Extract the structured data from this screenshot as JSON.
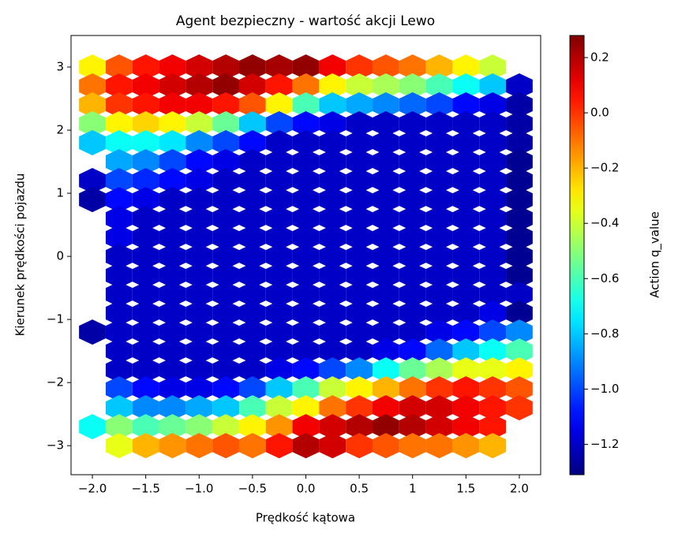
{
  "chart_data": {
    "type": "hexbin",
    "title": "Agent bezpieczny - wartość akcji Lewo",
    "x_label": "Prędkość kątowa",
    "y_label": "Kierunek prędkości pojazdu",
    "colorbar_label": "Action q_value",
    "colormap": "jet",
    "x": [
      -2.0,
      -1.75,
      -1.5,
      -1.25,
      -1.0,
      -0.75,
      -0.5,
      -0.25,
      0.0,
      0.25,
      0.5,
      0.75,
      1.0,
      1.25,
      1.5,
      1.75,
      2.0
    ],
    "y": [
      3.0,
      2.7,
      2.4,
      2.1,
      1.8,
      1.5,
      1.2,
      0.9,
      0.6,
      0.3,
      0.0,
      -0.3,
      -0.6,
      -0.9,
      -1.2,
      -1.5,
      -1.8,
      -2.1,
      -2.4,
      -2.7,
      -3.0
    ],
    "values": [
      [
        -0.3,
        -0.05,
        0.05,
        0.1,
        0.15,
        0.2,
        0.25,
        0.22,
        0.25,
        0.1,
        0.0,
        -0.05,
        -0.1,
        -0.2,
        -0.3,
        -0.4,
        null
      ],
      [
        -0.1,
        0.05,
        0.1,
        0.15,
        0.2,
        0.25,
        0.15,
        0.05,
        -0.1,
        -0.3,
        -0.4,
        -0.45,
        -0.5,
        -0.6,
        -0.7,
        -0.8,
        -1.2
      ],
      [
        -0.2,
        0.0,
        0.05,
        0.1,
        0.1,
        0.05,
        -0.05,
        -0.3,
        -0.6,
        -0.8,
        -0.85,
        -0.9,
        -0.95,
        -1.0,
        -1.1,
        -1.15,
        -1.25
      ],
      [
        -0.5,
        -0.3,
        -0.25,
        -0.3,
        -0.4,
        -0.55,
        -0.8,
        -1.0,
        -1.1,
        -1.15,
        -1.2,
        -1.2,
        -1.2,
        -1.2,
        -1.2,
        -1.2,
        -1.25
      ],
      [
        -0.8,
        -0.7,
        -0.7,
        -0.75,
        -0.9,
        -1.0,
        -1.1,
        -1.2,
        -1.2,
        -1.2,
        -1.2,
        -1.2,
        -1.2,
        -1.2,
        -1.2,
        -1.2,
        -1.25
      ],
      [
        null,
        -0.85,
        -0.9,
        -1.0,
        -1.1,
        -1.15,
        -1.2,
        -1.2,
        -1.2,
        -1.2,
        -1.2,
        -1.2,
        -1.2,
        -1.2,
        -1.2,
        -1.2,
        -1.28
      ],
      [
        -1.2,
        -1.0,
        -1.05,
        -1.1,
        -1.15,
        -1.2,
        -1.2,
        -1.2,
        -1.2,
        -1.2,
        -1.2,
        -1.2,
        -1.2,
        -1.2,
        -1.2,
        -1.2,
        -1.28
      ],
      [
        -1.25,
        -1.1,
        -1.15,
        -1.2,
        -1.2,
        -1.2,
        -1.2,
        -1.2,
        -1.2,
        -1.2,
        -1.2,
        -1.2,
        -1.2,
        -1.2,
        -1.2,
        -1.2,
        -1.28
      ],
      [
        null,
        -1.15,
        -1.2,
        -1.2,
        -1.2,
        -1.2,
        -1.2,
        -1.2,
        -1.2,
        -1.2,
        -1.2,
        -1.2,
        -1.2,
        -1.2,
        -1.2,
        -1.2,
        -1.28
      ],
      [
        null,
        -1.15,
        -1.2,
        -1.2,
        -1.2,
        -1.2,
        -1.2,
        -1.2,
        -1.2,
        -1.2,
        -1.2,
        -1.2,
        -1.2,
        -1.2,
        -1.2,
        -1.2,
        -1.28
      ],
      [
        null,
        -1.2,
        -1.2,
        -1.2,
        -1.2,
        -1.2,
        -1.2,
        -1.2,
        -1.2,
        -1.2,
        -1.2,
        -1.2,
        -1.2,
        -1.2,
        -1.2,
        -1.2,
        -1.28
      ],
      [
        null,
        -1.2,
        -1.2,
        -1.2,
        -1.2,
        -1.2,
        -1.2,
        -1.2,
        -1.2,
        -1.2,
        -1.2,
        -1.2,
        -1.2,
        -1.2,
        -1.2,
        -1.2,
        -1.28
      ],
      [
        null,
        -1.2,
        -1.2,
        -1.2,
        -1.2,
        -1.2,
        -1.2,
        -1.2,
        -1.2,
        -1.2,
        -1.2,
        -1.2,
        -1.2,
        -1.2,
        -1.2,
        -1.2,
        -1.2
      ],
      [
        null,
        -1.2,
        -1.2,
        -1.2,
        -1.2,
        -1.2,
        -1.2,
        -1.2,
        -1.2,
        -1.2,
        -1.2,
        -1.2,
        -1.2,
        -1.2,
        -1.2,
        -1.15,
        -1.28
      ],
      [
        -1.25,
        -1.2,
        -1.2,
        -1.2,
        -1.2,
        -1.2,
        -1.2,
        -1.2,
        -1.2,
        -1.2,
        -1.2,
        -1.2,
        -1.2,
        -1.15,
        -1.1,
        -1.0,
        -0.9
      ],
      [
        null,
        -1.2,
        -1.2,
        -1.2,
        -1.2,
        -1.2,
        -1.2,
        -1.2,
        -1.2,
        -1.2,
        -1.2,
        -1.15,
        -1.1,
        -0.95,
        -0.8,
        -0.7,
        -0.6
      ],
      [
        null,
        -1.2,
        -1.2,
        -1.2,
        -1.2,
        -1.2,
        -1.2,
        -1.15,
        -1.1,
        -1.0,
        -0.9,
        -0.7,
        -0.55,
        -0.45,
        -0.35,
        -0.35,
        -0.3
      ],
      [
        null,
        -1.0,
        -1.1,
        -1.15,
        -1.15,
        -1.1,
        -1.0,
        -0.8,
        -0.6,
        -0.4,
        -0.3,
        -0.2,
        -0.1,
        0.0,
        0.05,
        0.0,
        -0.05
      ],
      [
        null,
        -0.8,
        -0.9,
        -0.9,
        -0.85,
        -0.8,
        -0.6,
        -0.4,
        -0.3,
        -0.1,
        0.0,
        0.1,
        0.15,
        0.15,
        0.1,
        0.05,
        0.0
      ],
      [
        -0.7,
        -0.5,
        -0.6,
        -0.55,
        -0.5,
        -0.4,
        -0.3,
        -0.15,
        0.1,
        0.15,
        0.2,
        0.25,
        0.2,
        0.15,
        0.1,
        0.05,
        null
      ],
      [
        null,
        -0.35,
        -0.2,
        -0.15,
        -0.1,
        -0.05,
        -0.1,
        0.05,
        0.2,
        0.15,
        0.0,
        -0.05,
        -0.1,
        -0.1,
        -0.15,
        -0.2,
        null
      ]
    ],
    "xlim": [
      -2.2,
      2.2
    ],
    "ylim": [
      -3.46,
      3.5
    ],
    "clim": [
      -1.31,
      0.28
    ],
    "xticks": [
      {
        "value": -2.0,
        "label": "−2.0"
      },
      {
        "value": -1.5,
        "label": "−1.5"
      },
      {
        "value": -1.0,
        "label": "−1.0"
      },
      {
        "value": -0.5,
        "label": "−0.5"
      },
      {
        "value": 0.0,
        "label": "0.0"
      },
      0.5,
      1.0,
      1.5,
      {
        "value": 2.0,
        "label": "2.0"
      }
    ],
    "yticks": [
      {
        "value": -3,
        "label": "−3"
      },
      {
        "value": -2,
        "label": "−2"
      },
      {
        "value": -1,
        "label": "−1"
      },
      0,
      1,
      2,
      3
    ],
    "cticks": [
      0.2,
      {
        "value": 0.0,
        "label": "0.0"
      },
      {
        "value": -0.2,
        "label": "−0.2"
      },
      {
        "value": -0.4,
        "label": "−0.4"
      },
      {
        "value": -0.6,
        "label": "−0.6"
      },
      {
        "value": -0.8,
        "label": "−0.8"
      },
      {
        "value": -1.0,
        "label": "−1.0"
      },
      {
        "value": -1.2,
        "label": "−1.2"
      }
    ]
  }
}
